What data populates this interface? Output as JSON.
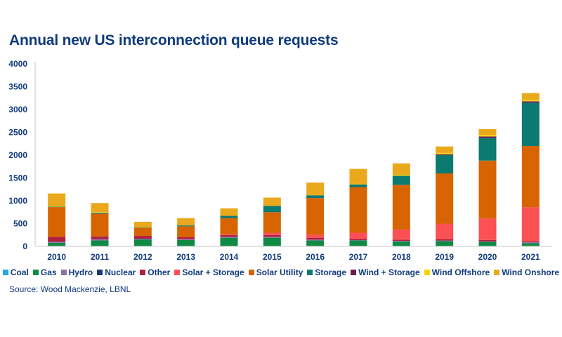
{
  "chart_data": {
    "type": "bar",
    "stacked": true,
    "title": "Annual new US interconnection queue requests",
    "xlabel": "",
    "ylabel": "",
    "ylim": [
      0,
      4000
    ],
    "yticks": [
      "0",
      "500",
      "1000",
      "1500",
      "2000",
      "2500",
      "3000",
      "3500",
      "4000"
    ],
    "grid": false,
    "legend_position": "bottom",
    "categories": [
      "2010",
      "2011",
      "2012",
      "2013",
      "2014",
      "2015",
      "2016",
      "2017",
      "2018",
      "2019",
      "2020",
      "2021"
    ],
    "series": [
      {
        "name": "Coal",
        "color": "#21a8e0",
        "values": [
          0,
          0,
          0,
          0,
          0,
          0,
          0,
          0,
          0,
          0,
          0,
          0
        ]
      },
      {
        "name": "Gas",
        "color": "#0f8a45",
        "values": [
          80,
          130,
          150,
          140,
          190,
          190,
          130,
          130,
          110,
          120,
          100,
          70
        ]
      },
      {
        "name": "Hydro",
        "color": "#8a72a8",
        "values": [
          20,
          30,
          15,
          20,
          20,
          20,
          20,
          10,
          10,
          10,
          10,
          20
        ]
      },
      {
        "name": "Nuclear",
        "color": "#1a3a7a",
        "values": [
          0,
          0,
          5,
          0,
          0,
          0,
          0,
          0,
          0,
          0,
          0,
          0
        ]
      },
      {
        "name": "Other",
        "color": "#b0203f",
        "values": [
          110,
          60,
          60,
          40,
          40,
          40,
          40,
          30,
          30,
          30,
          30,
          20
        ]
      },
      {
        "name": "Solar + Storage",
        "color": "#fb5155",
        "values": [
          0,
          0,
          0,
          0,
          10,
          50,
          70,
          130,
          220,
          340,
          470,
          750
        ]
      },
      {
        "name": "Solar Utility",
        "color": "#d76400",
        "values": [
          650,
          500,
          170,
          240,
          360,
          450,
          800,
          1000,
          980,
          1100,
          1270,
          1340
        ]
      },
      {
        "name": "Storage",
        "color": "#0b7a70",
        "values": [
          10,
          20,
          10,
          20,
          50,
          140,
          60,
          60,
          200,
          400,
          500,
          950
        ]
      },
      {
        "name": "Wind + Storage",
        "color": "#6e1a4e",
        "values": [
          0,
          0,
          0,
          0,
          0,
          0,
          0,
          0,
          0,
          20,
          30,
          30
        ]
      },
      {
        "name": "Wind Offshore",
        "color": "#f7d40a",
        "values": [
          10,
          10,
          0,
          0,
          0,
          0,
          0,
          10,
          20,
          30,
          30,
          30
        ]
      },
      {
        "name": "Wind Onshore",
        "color": "#eaa81c",
        "values": [
          280,
          200,
          130,
          160,
          165,
          180,
          280,
          330,
          250,
          140,
          130,
          150
        ]
      }
    ]
  },
  "source": "Source: Wood Mackenzie, LBNL"
}
